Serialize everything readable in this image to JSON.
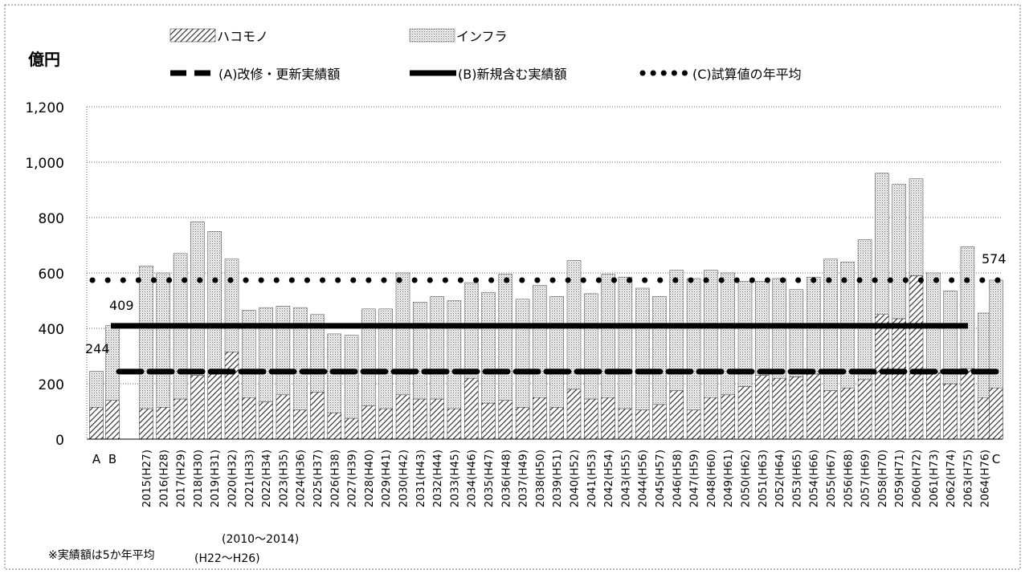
{
  "chart_data": {
    "type": "bar",
    "ylabel": "億円",
    "ylim": [
      0,
      1200
    ],
    "yticks": [
      "0",
      "200",
      "400",
      "600",
      "800",
      "1,000",
      "1,200"
    ],
    "grid": true,
    "legend_placement": "top",
    "legend": {
      "hakomono": "ハコモノ",
      "infra": "インフラ",
      "lineA": "(A)改修・更新実績額",
      "lineB": "(B)新規含む実績額",
      "lineC": "(C)試算値の年平均"
    },
    "categories": [
      "A",
      "B",
      "2015(H27)",
      "2016(H28)",
      "2017(H29)",
      "2018(H30)",
      "2019(H31)",
      "2020(H32)",
      "2021(H33)",
      "2022(H34)",
      "2023(H35)",
      "2024(H36)",
      "2025(H37)",
      "2026(H38)",
      "2027(H39)",
      "2028(H40)",
      "2029(H41)",
      "2030(H42)",
      "2031(H43)",
      "2032(H44)",
      "2033(H45)",
      "2034(H46)",
      "2035(H47)",
      "2036(H48)",
      "2037(H49)",
      "2038(H50)",
      "2039(H51)",
      "2040(H52)",
      "2041(H53)",
      "2042(H54)",
      "2043(H55)",
      "2044(H56)",
      "2045(H57)",
      "2046(H58)",
      "2047(H59)",
      "2048(H60)",
      "2049(H61)",
      "2050(H62)",
      "2051(H63)",
      "2052(H64)",
      "2053(H65)",
      "2054(H66)",
      "2055(H67)",
      "2056(H68)",
      "2057(H69)",
      "2058(H70)",
      "2059(H71)",
      "2060(H72)",
      "2061(H73)",
      "2062(H74)",
      "2063(H75)",
      "2064(H76)",
      "C"
    ],
    "series": [
      {
        "name": "ハコモノ",
        "pattern": "hatch",
        "values": [
          115,
          140,
          110,
          115,
          145,
          230,
          235,
          315,
          150,
          135,
          160,
          105,
          170,
          95,
          75,
          120,
          110,
          160,
          145,
          145,
          110,
          220,
          130,
          140,
          115,
          150,
          115,
          180,
          145,
          150,
          110,
          105,
          125,
          175,
          105,
          150,
          160,
          190,
          230,
          220,
          225,
          235,
          175,
          185,
          215,
          450,
          435,
          590,
          240,
          200,
          255,
          150,
          185
        ]
      },
      {
        "name": "インフラ",
        "pattern": "dots",
        "values": [
          130,
          270,
          515,
          485,
          525,
          555,
          515,
          335,
          315,
          340,
          320,
          370,
          280,
          285,
          300,
          350,
          360,
          440,
          350,
          370,
          390,
          345,
          400,
          455,
          390,
          405,
          400,
          465,
          380,
          445,
          475,
          440,
          390,
          435,
          475,
          460,
          440,
          380,
          340,
          360,
          315,
          350,
          475,
          455,
          505,
          510,
          485,
          350,
          360,
          335,
          440,
          305,
          389
        ]
      }
    ],
    "reference_lines": [
      {
        "name": "(A)改修・更新実績額",
        "value": 244,
        "style": "dashed",
        "label": "244"
      },
      {
        "name": "(B)新規含む実績額",
        "value": 409,
        "style": "solid",
        "label": "409"
      },
      {
        "name": "(C)試算値の年平均",
        "value": 574,
        "style": "dotted",
        "label": "574"
      }
    ],
    "annotations": {
      "period": "(2010～2014)",
      "note": "※実績額は5か年平均",
      "note_era": "(H22～H26)"
    }
  }
}
